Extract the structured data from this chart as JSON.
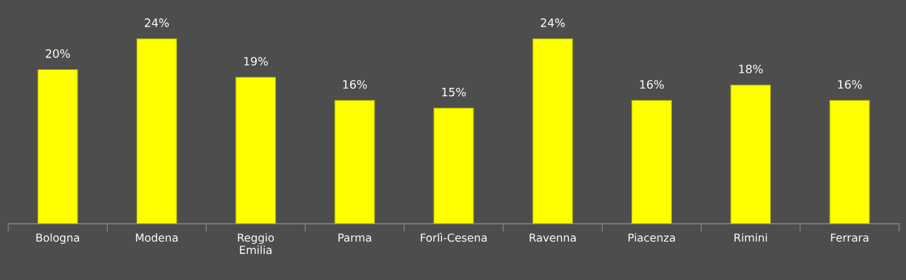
{
  "chart_data": {
    "type": "bar",
    "categories": [
      "Bologna",
      "Modena",
      "Reggio\nEmilia",
      "Parma",
      "Forlì-Cesena",
      "Ravenna",
      "Piacenza",
      "Rimini",
      "Ferrara"
    ],
    "values": [
      20,
      24,
      19,
      16,
      15,
      24,
      16,
      18,
      16
    ],
    "value_labels": [
      "20%",
      "24%",
      "19%",
      "16%",
      "15%",
      "24%",
      "16%",
      "18%",
      "16%"
    ],
    "color": "#ffff00",
    "grid": false,
    "legend": false,
    "tick_labels": "x"
  }
}
